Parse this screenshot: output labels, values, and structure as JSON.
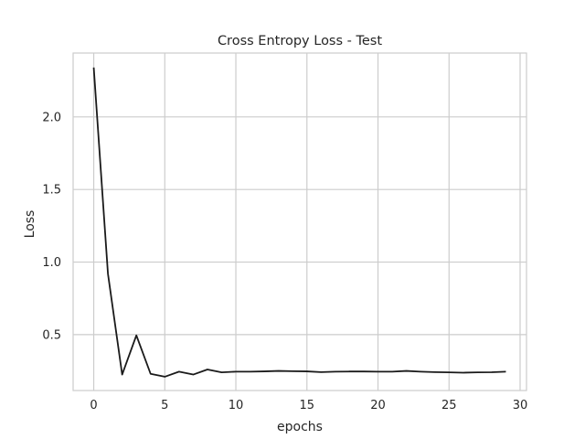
{
  "chart_data": {
    "type": "line",
    "title": "Cross Entropy Loss - Test",
    "xlabel": "epochs",
    "ylabel": "Loss",
    "xlim": [
      -1.45,
      30.45
    ],
    "ylim": [
      0.115,
      2.44
    ],
    "xticks": [
      0,
      5,
      10,
      15,
      20,
      25,
      30
    ],
    "xtick_labels": [
      "0",
      "5",
      "10",
      "15",
      "20",
      "25",
      "30"
    ],
    "yticks": [
      0.5,
      1.0,
      1.5,
      2.0
    ],
    "ytick_labels": [
      "0.5",
      "1.0",
      "1.5",
      "2.0"
    ],
    "grid": true,
    "legend": null,
    "line_color": "#1a1a1a",
    "grid_color": "#cccccc",
    "series": [
      {
        "x": [
          0,
          1,
          2,
          3,
          4,
          5,
          6,
          7,
          8,
          9,
          10,
          11,
          12,
          13,
          14,
          15,
          16,
          17,
          18,
          19,
          20,
          21,
          22,
          23,
          24,
          25,
          26,
          27,
          28,
          29
        ],
        "values": [
          2.34,
          0.92,
          0.225,
          0.495,
          0.23,
          0.21,
          0.245,
          0.225,
          0.26,
          0.24,
          0.245,
          0.245,
          0.247,
          0.25,
          0.248,
          0.247,
          0.242,
          0.245,
          0.246,
          0.246,
          0.245,
          0.245,
          0.25,
          0.245,
          0.242,
          0.24,
          0.238,
          0.24,
          0.241,
          0.245
        ]
      }
    ]
  }
}
